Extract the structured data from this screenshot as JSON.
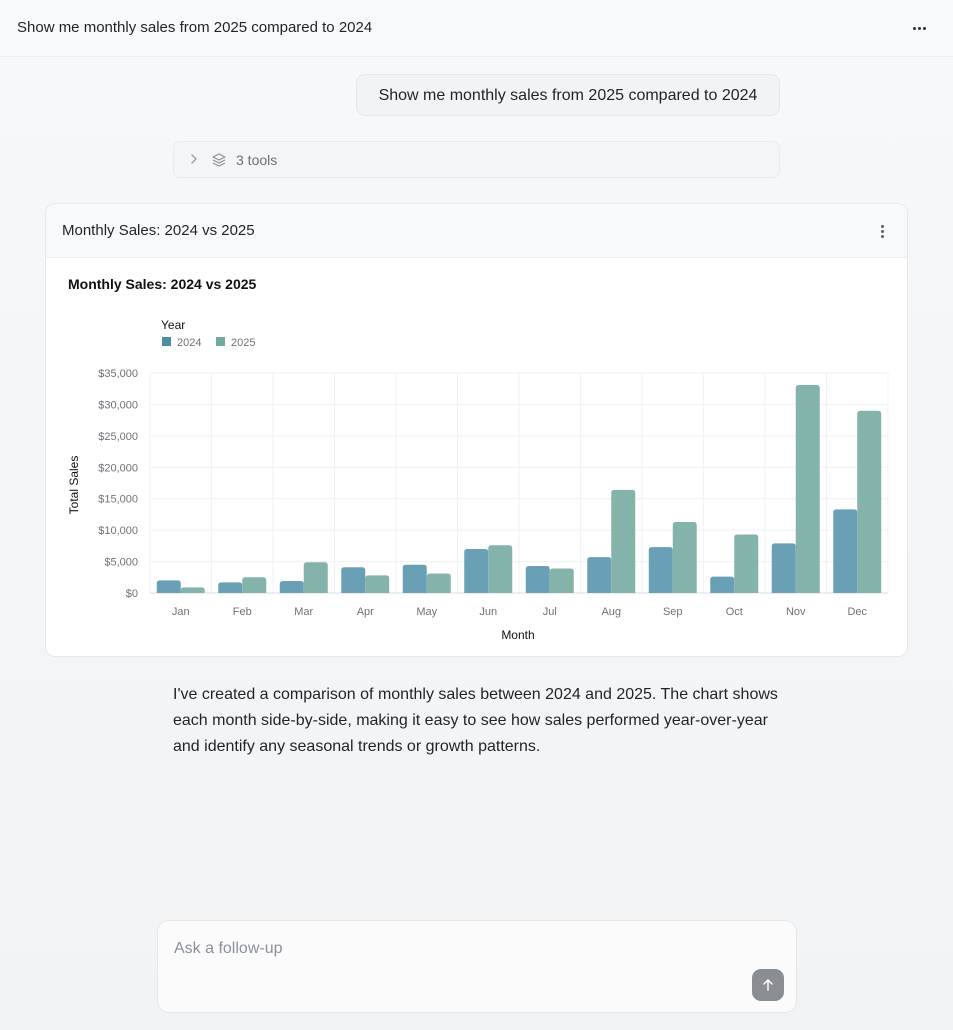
{
  "header": {
    "title": "Show me monthly sales from 2025 compared to 2024",
    "more_icon": "ellipsis-horizontal-icon"
  },
  "conversation": {
    "user_message": "Show me monthly sales from 2025 compared to 2024",
    "tools_summary": "3 tools",
    "assistant_reply": "I've created a comparison of monthly sales between 2024 and 2025. The chart shows each month side-by-side, making it easy to see how sales performed year-over-year and identify any seasonal trends or growth patterns."
  },
  "card": {
    "title": "Monthly Sales: 2024 vs 2025",
    "more_icon": "ellipsis-vertical-icon"
  },
  "chart_data": {
    "type": "bar",
    "title": "Monthly Sales: 2024 vs 2025",
    "xlabel": "Month",
    "ylabel": "Total Sales",
    "legend_title": "Year",
    "legend_position": "top-left",
    "grid": true,
    "categories": [
      "Jan",
      "Feb",
      "Mar",
      "Apr",
      "May",
      "Jun",
      "Jul",
      "Aug",
      "Sep",
      "Oct",
      "Nov",
      "Dec"
    ],
    "ylim": [
      0,
      35000
    ],
    "yticks": [
      0,
      5000,
      10000,
      15000,
      20000,
      25000,
      30000,
      35000
    ],
    "ytick_labels": [
      "$0",
      "$5,000",
      "$10,000",
      "$15,000",
      "$20,000",
      "$25,000",
      "$30,000",
      "$35,000"
    ],
    "series": [
      {
        "name": "2024",
        "color": "#6aa0b6",
        "values": [
          2000,
          1700,
          1900,
          4100,
          4500,
          7000,
          4300,
          5700,
          7300,
          2600,
          7900,
          13300
        ]
      },
      {
        "name": "2025",
        "color": "#83b3aa",
        "values": [
          900,
          2500,
          4900,
          2800,
          3100,
          7600,
          3900,
          16400,
          11300,
          9300,
          33100,
          29000
        ]
      }
    ],
    "legend_swatches": [
      "#4e8ca5",
      "#72a99e"
    ]
  },
  "composer": {
    "placeholder": "Ask a follow-up",
    "send_icon": "arrow-up-icon"
  }
}
